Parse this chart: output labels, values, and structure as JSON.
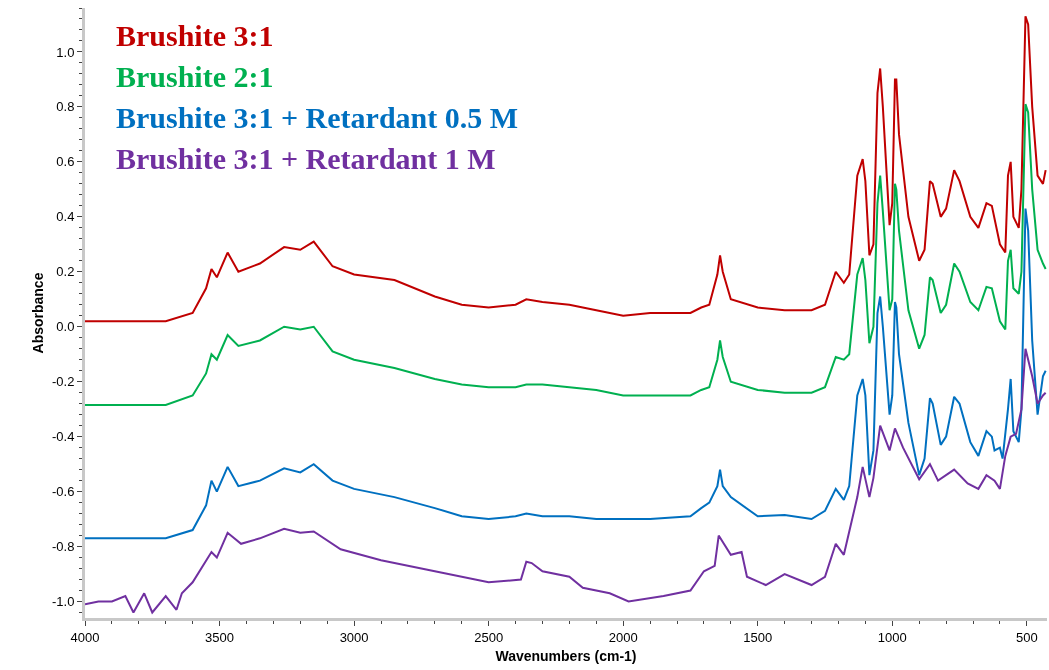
{
  "chart_data": {
    "type": "line",
    "xlabel": "Wavenumbers (cm-1)",
    "ylabel": "Absorbance",
    "xlim": [
      4000,
      425
    ],
    "ylim": [
      -1.06,
      1.16
    ],
    "xticks": [
      4000,
      3500,
      3000,
      2500,
      2000,
      1500,
      1000,
      500
    ],
    "yticks": [
      {
        "value": -1,
        "label": "-1.0"
      },
      -0.8,
      -0.6,
      -0.4,
      -0.2,
      {
        "value": 0,
        "label": "0.0"
      },
      0.2,
      0.4,
      0.6,
      0.8,
      {
        "value": 1,
        "label": "1.0"
      }
    ],
    "legend": "top left",
    "marker": "none",
    "line_style": "solid",
    "series": [
      {
        "name": "Brushite 3:1",
        "color": "#c00000",
        "x": [
          4000,
          3800,
          3700,
          3600,
          3550,
          3530,
          3510,
          3470,
          3430,
          3350,
          3260,
          3200,
          3150,
          3080,
          3000,
          2850,
          2700,
          2600,
          2500,
          2400,
          2360,
          2300,
          2200,
          2100,
          2000,
          1900,
          1750,
          1710,
          1680,
          1650,
          1640,
          1630,
          1600,
          1500,
          1400,
          1300,
          1250,
          1210,
          1180,
          1160,
          1130,
          1110,
          1100,
          1085,
          1070,
          1055,
          1045,
          1035,
          1010,
          1000,
          990,
          985,
          975,
          940,
          900,
          880,
          860,
          850,
          820,
          800,
          770,
          750,
          710,
          680,
          650,
          630,
          600,
          580,
          570,
          560,
          550,
          530,
          520,
          505,
          495,
          480,
          460,
          440,
          430
        ],
        "values": [
          0.02,
          0.02,
          0.02,
          0.05,
          0.14,
          0.21,
          0.18,
          0.27,
          0.2,
          0.23,
          0.29,
          0.28,
          0.31,
          0.22,
          0.19,
          0.17,
          0.11,
          0.08,
          0.07,
          0.08,
          0.1,
          0.09,
          0.08,
          0.06,
          0.04,
          0.05,
          0.05,
          0.07,
          0.08,
          0.19,
          0.26,
          0.2,
          0.1,
          0.07,
          0.06,
          0.06,
          0.08,
          0.2,
          0.16,
          0.19,
          0.55,
          0.61,
          0.53,
          0.26,
          0.3,
          0.85,
          0.94,
          0.8,
          0.37,
          0.45,
          0.9,
          0.9,
          0.7,
          0.4,
          0.24,
          0.28,
          0.53,
          0.52,
          0.4,
          0.43,
          0.57,
          0.53,
          0.4,
          0.36,
          0.45,
          0.44,
          0.3,
          0.27,
          0.55,
          0.6,
          0.4,
          0.36,
          0.5,
          1.13,
          1.1,
          0.8,
          0.55,
          0.52,
          0.57
        ]
      },
      {
        "name": "Brushite 2:1",
        "color": "#00b050",
        "x": [
          4000,
          3800,
          3700,
          3600,
          3550,
          3530,
          3510,
          3470,
          3430,
          3350,
          3260,
          3200,
          3150,
          3080,
          3000,
          2850,
          2700,
          2600,
          2500,
          2400,
          2360,
          2300,
          2200,
          2100,
          2000,
          1900,
          1750,
          1710,
          1680,
          1650,
          1640,
          1630,
          1600,
          1500,
          1400,
          1300,
          1250,
          1210,
          1180,
          1160,
          1130,
          1110,
          1100,
          1085,
          1070,
          1055,
          1045,
          1035,
          1010,
          1000,
          990,
          985,
          975,
          940,
          900,
          880,
          860,
          850,
          820,
          800,
          770,
          750,
          710,
          680,
          650,
          630,
          600,
          580,
          570,
          560,
          550,
          530,
          520,
          505,
          495,
          480,
          460,
          440,
          430
        ],
        "values": [
          -0.285,
          -0.285,
          -0.285,
          -0.25,
          -0.17,
          -0.1,
          -0.12,
          -0.03,
          -0.07,
          -0.05,
          0.0,
          -0.01,
          0.0,
          -0.09,
          -0.12,
          -0.15,
          -0.19,
          -0.21,
          -0.22,
          -0.22,
          -0.21,
          -0.21,
          -0.22,
          -0.23,
          -0.25,
          -0.25,
          -0.25,
          -0.23,
          -0.22,
          -0.12,
          -0.05,
          -0.11,
          -0.2,
          -0.23,
          -0.24,
          -0.24,
          -0.22,
          -0.11,
          -0.12,
          -0.1,
          0.19,
          0.25,
          0.17,
          -0.06,
          0.0,
          0.45,
          0.55,
          0.42,
          0.06,
          0.1,
          0.52,
          0.5,
          0.35,
          0.06,
          -0.08,
          -0.03,
          0.18,
          0.17,
          0.05,
          0.08,
          0.23,
          0.2,
          0.09,
          0.06,
          0.145,
          0.14,
          0.02,
          -0.01,
          0.24,
          0.28,
          0.14,
          0.12,
          0.2,
          0.81,
          0.78,
          0.5,
          0.28,
          0.23,
          0.21
        ]
      },
      {
        "name": "Brushite 3:1 + Retardant 0.5 M",
        "color": "#0070c0",
        "x": [
          4000,
          3800,
          3700,
          3600,
          3550,
          3530,
          3510,
          3470,
          3430,
          3350,
          3260,
          3200,
          3150,
          3080,
          3000,
          2850,
          2700,
          2600,
          2500,
          2400,
          2360,
          2300,
          2200,
          2100,
          2000,
          1900,
          1750,
          1710,
          1680,
          1650,
          1640,
          1630,
          1600,
          1500,
          1400,
          1300,
          1250,
          1210,
          1180,
          1160,
          1130,
          1110,
          1100,
          1085,
          1070,
          1055,
          1045,
          1035,
          1010,
          1000,
          990,
          985,
          975,
          940,
          900,
          880,
          860,
          850,
          820,
          800,
          770,
          750,
          710,
          680,
          650,
          630,
          620,
          600,
          590,
          570,
          560,
          550,
          530,
          520,
          505,
          495,
          480,
          460,
          440,
          430
        ],
        "values": [
          -0.77,
          -0.77,
          -0.77,
          -0.74,
          -0.65,
          -0.56,
          -0.6,
          -0.51,
          -0.58,
          -0.56,
          -0.515,
          -0.53,
          -0.5,
          -0.56,
          -0.59,
          -0.62,
          -0.66,
          -0.69,
          -0.7,
          -0.69,
          -0.68,
          -0.69,
          -0.69,
          -0.7,
          -0.7,
          -0.7,
          -0.69,
          -0.66,
          -0.64,
          -0.58,
          -0.52,
          -0.58,
          -0.62,
          -0.69,
          -0.685,
          -0.7,
          -0.67,
          -0.59,
          -0.63,
          -0.58,
          -0.25,
          -0.19,
          -0.25,
          -0.54,
          -0.45,
          0.05,
          0.11,
          0.0,
          -0.32,
          -0.25,
          0.09,
          0.07,
          -0.1,
          -0.35,
          -0.54,
          -0.48,
          -0.26,
          -0.28,
          -0.43,
          -0.4,
          -0.255,
          -0.28,
          -0.42,
          -0.47,
          -0.38,
          -0.4,
          -0.45,
          -0.44,
          -0.48,
          -0.3,
          -0.19,
          -0.38,
          -0.42,
          -0.3,
          0.43,
          0.35,
          -0.05,
          -0.32,
          -0.18,
          -0.16
        ]
      },
      {
        "name": "Brushite 3:1 + Retardant 1 M",
        "color": "#7030a0",
        "x": [
          4000,
          3950,
          3900,
          3850,
          3820,
          3780,
          3750,
          3700,
          3660,
          3640,
          3600,
          3530,
          3510,
          3470,
          3420,
          3350,
          3260,
          3200,
          3150,
          3050,
          2900,
          2700,
          2500,
          2380,
          2360,
          2340,
          2300,
          2200,
          2150,
          2050,
          1980,
          1850,
          1750,
          1700,
          1660,
          1645,
          1600,
          1560,
          1540,
          1470,
          1400,
          1300,
          1250,
          1210,
          1180,
          1130,
          1110,
          1085,
          1070,
          1045,
          1010,
          990,
          960,
          900,
          860,
          830,
          770,
          720,
          680,
          650,
          620,
          600,
          580,
          560,
          540,
          520,
          505,
          480,
          460,
          440,
          430
        ],
        "values": [
          -1.01,
          -1.0,
          -1.0,
          -0.98,
          -1.04,
          -0.97,
          -1.04,
          -0.98,
          -1.03,
          -0.97,
          -0.93,
          -0.82,
          -0.84,
          -0.75,
          -0.79,
          -0.77,
          -0.735,
          -0.75,
          -0.745,
          -0.81,
          -0.85,
          -0.89,
          -0.93,
          -0.92,
          -0.855,
          -0.86,
          -0.89,
          -0.91,
          -0.95,
          -0.97,
          -1.0,
          -0.98,
          -0.96,
          -0.89,
          -0.87,
          -0.76,
          -0.83,
          -0.82,
          -0.91,
          -0.94,
          -0.9,
          -0.94,
          -0.91,
          -0.79,
          -0.83,
          -0.62,
          -0.51,
          -0.62,
          -0.55,
          -0.36,
          -0.45,
          -0.37,
          -0.44,
          -0.555,
          -0.5,
          -0.56,
          -0.52,
          -0.57,
          -0.59,
          -0.54,
          -0.56,
          -0.59,
          -0.47,
          -0.4,
          -0.39,
          -0.3,
          -0.08,
          -0.18,
          -0.28,
          -0.25,
          -0.24
        ]
      }
    ]
  }
}
